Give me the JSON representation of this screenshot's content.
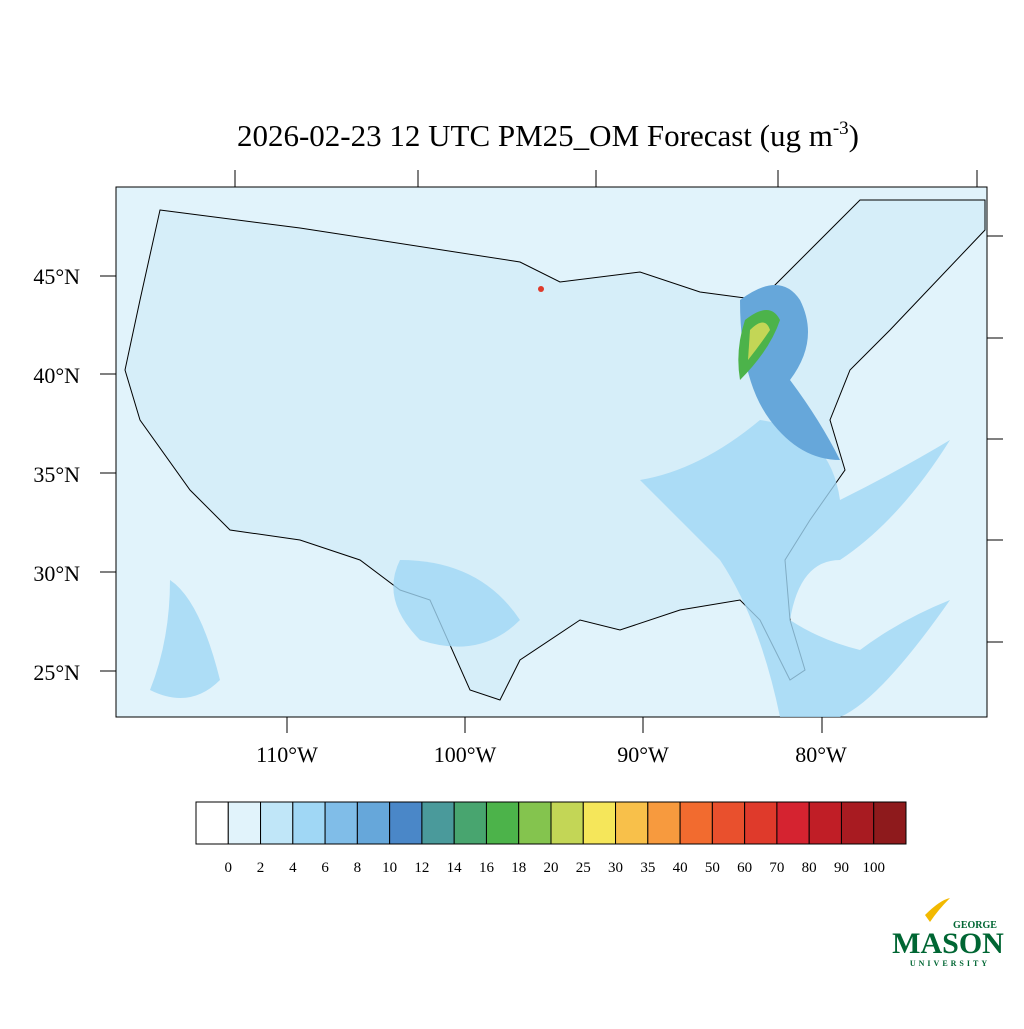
{
  "header": {
    "title": "2026-02-23 12 UTC PM25_OM Forecast (ug m",
    "title_superscript": "-3",
    "title_suffix": ")"
  },
  "map": {
    "lat_labels": [
      "45°N",
      "40°N",
      "35°N",
      "30°N",
      "25°N"
    ],
    "lon_labels": [
      "110°W",
      "100°W",
      "90°W",
      "80°W"
    ]
  },
  "colorbar": {
    "colors": [
      "#ffffff",
      "#e1f3fb",
      "#c0e6f8",
      "#a0d7f5",
      "#80bde8",
      "#66a7da",
      "#4a87c8",
      "#4a9a9b",
      "#48a56f",
      "#4cb34a",
      "#84c44e",
      "#c3d656",
      "#f5e65a",
      "#f8c04a",
      "#f79a3e",
      "#f26b2f",
      "#e9502d",
      "#df3a2b",
      "#d52330",
      "#c01e26",
      "#a81b21",
      "#8e1a1c"
    ],
    "labels": [
      0,
      2,
      4,
      6,
      8,
      10,
      12,
      14,
      16,
      18,
      20,
      25,
      30,
      35,
      40,
      50,
      60,
      70,
      80,
      90,
      100
    ]
  },
  "logo": {
    "top": "GEORGE",
    "main": "MASON",
    "bottom": "UNIVERSITY"
  }
}
